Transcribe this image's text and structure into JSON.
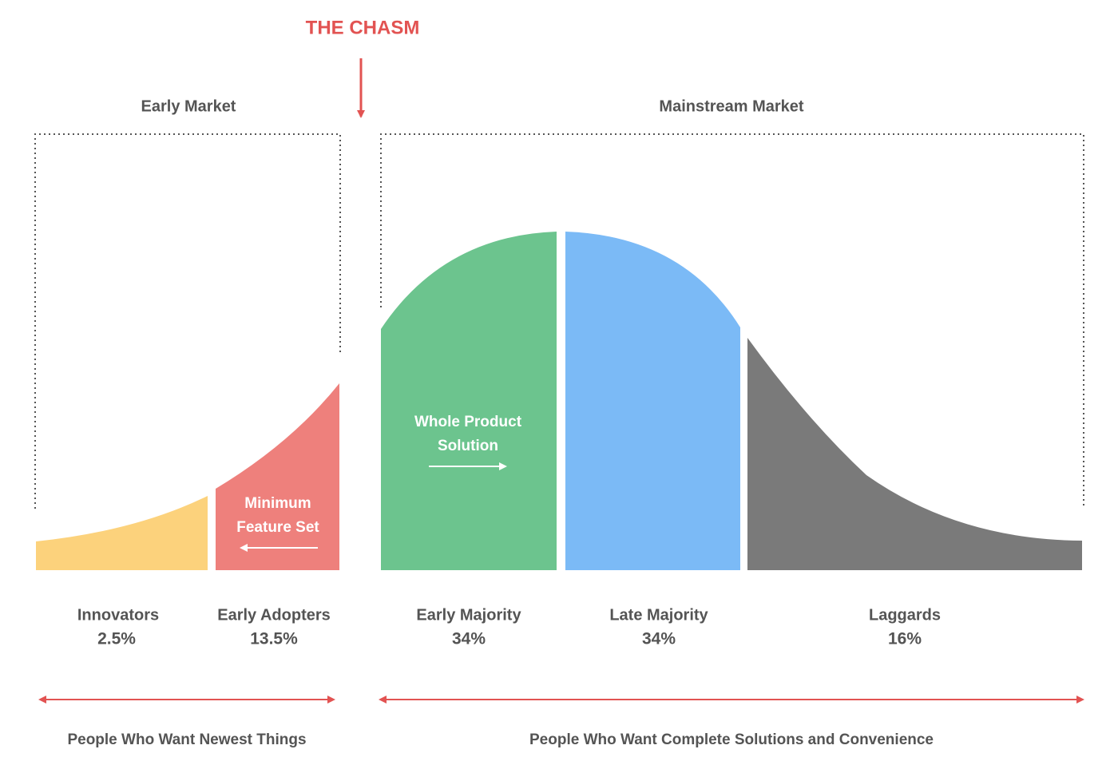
{
  "title": "THE CHASM",
  "markets": [
    {
      "label": "Early Market"
    },
    {
      "label": "Mainstream Market"
    }
  ],
  "segments": [
    {
      "name": "Innovators",
      "share": "2.5%"
    },
    {
      "name": "Early Adopters",
      "share": "13.5%"
    },
    {
      "name": "Early Majority",
      "share": "34%"
    },
    {
      "name": "Late Majority",
      "share": "34%"
    },
    {
      "name": "Laggards",
      "share": "16%"
    }
  ],
  "annotations": [
    {
      "lines": [
        "Minimum",
        "Feature Set"
      ]
    },
    {
      "lines": [
        "Whole Product",
        "Solution"
      ]
    }
  ],
  "footers": [
    {
      "label": "People Who Want Newest Things"
    },
    {
      "label": "People Who Want Complete Solutions and Convenience"
    }
  ]
}
